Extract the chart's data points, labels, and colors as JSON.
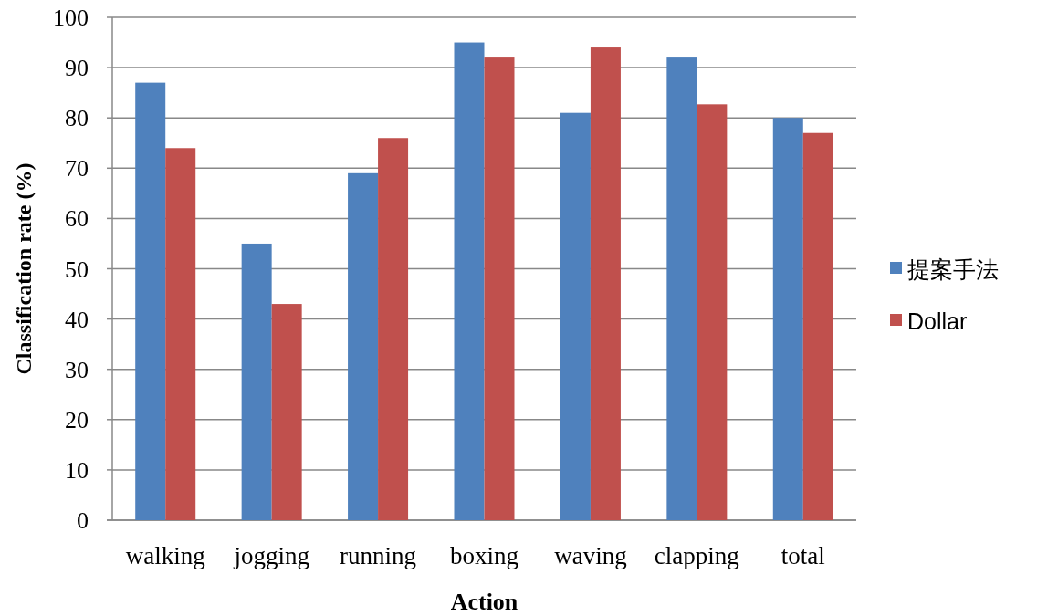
{
  "chart_data": {
    "type": "bar",
    "xlabel": "Action",
    "ylabel": "Classification rate (%)",
    "categories": [
      "walking",
      "jogging",
      "running",
      "boxing",
      "waving",
      "clapping",
      "total"
    ],
    "series": [
      {
        "name": "提案手法",
        "color": "#4f81bd",
        "values": [
          87,
          55,
          69,
          95,
          81,
          92,
          80
        ]
      },
      {
        "name": "Dollar",
        "color": "#c0504d",
        "values": [
          74,
          43,
          76,
          92,
          94,
          82.7,
          77
        ]
      }
    ],
    "ylim": [
      0,
      100
    ],
    "yticks": [
      0,
      10,
      20,
      30,
      40,
      50,
      60,
      70,
      80,
      90,
      100
    ],
    "grid": "y",
    "legend": "right"
  }
}
